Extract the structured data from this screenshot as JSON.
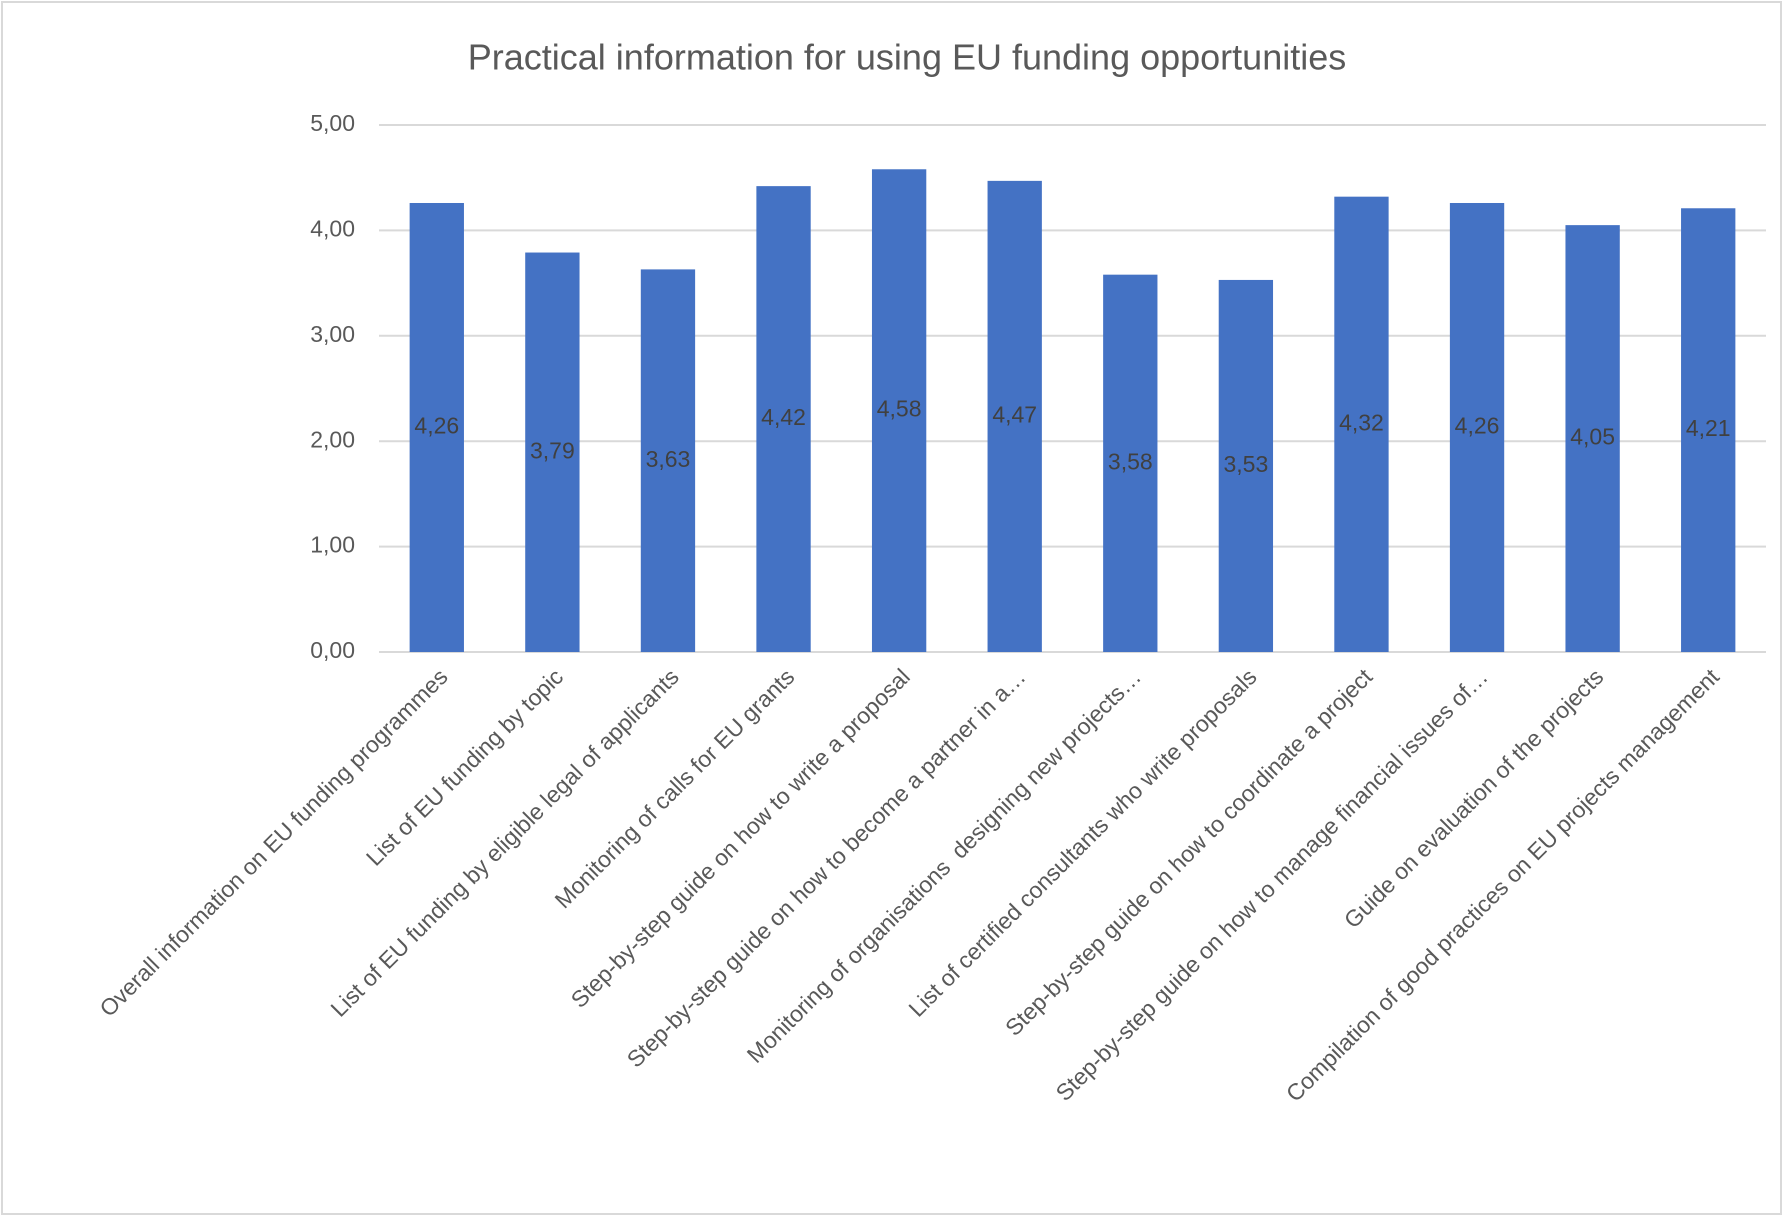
{
  "chart_data": {
    "type": "bar",
    "title": "Practical information for using EU funding opportunities",
    "categories": [
      "Overall information on EU funding programmes",
      "List of EU funding by topic",
      "List of EU funding by eligible legal of applicants",
      "Monitoring of calls for EU grants",
      "Step-by-step guide on how to write a proposal",
      "Step-by-step guide on how to become a partner in a…",
      "Monitoring of organisations  designing new projects…",
      "List of certified consultants who write proposals",
      "Step-by-step guide on how to coordinate a project",
      "Step-by-step guide on how to manage financial issues of…",
      "Guide on evaluation of the projects",
      "Compilation of good practices on EU projects management"
    ],
    "values": [
      4.26,
      3.79,
      3.63,
      4.42,
      4.58,
      4.47,
      3.58,
      3.53,
      4.32,
      4.26,
      4.05,
      4.21
    ],
    "value_labels": [
      "4,26",
      "3,79",
      "3,63",
      "4,42",
      "4,58",
      "4,47",
      "3,58",
      "3,53",
      "4,32",
      "4,26",
      "4,05",
      "4,21"
    ],
    "color": "#4472c4",
    "ylim": [
      0,
      5
    ],
    "yticks": [
      {
        "value": 0,
        "label": "0,00"
      },
      {
        "value": 1,
        "label": "1,00"
      },
      {
        "value": 2,
        "label": "2,00"
      },
      {
        "value": 3,
        "label": "3,00"
      },
      {
        "value": 4,
        "label": "4,00"
      },
      {
        "value": 5,
        "label": "5,00"
      }
    ],
    "grid": true
  }
}
